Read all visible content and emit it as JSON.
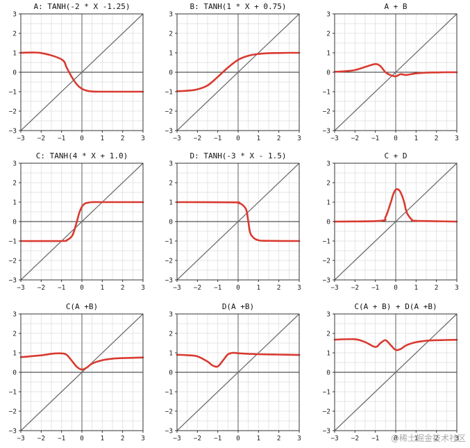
{
  "style": {
    "curve_color": "#d93a30",
    "identity_color": "#6e6e6e",
    "axis_color": "#2a2a2a",
    "grid_color": "#dedede"
  },
  "watermark": "@稀土掘金技术社区",
  "chart_data": [
    {
      "type": "line",
      "title": "A: TANH(-2 * X -1.25)",
      "xlim": [
        -3,
        3
      ],
      "ylim": [
        -3,
        3
      ],
      "xticks": [
        -3,
        -2,
        -1,
        0,
        1,
        2,
        3
      ],
      "yticks": [
        3,
        2,
        1,
        0,
        -1,
        -2,
        -3
      ],
      "grid": true,
      "series": [
        {
          "x": [
            -3,
            -2,
            -1,
            -0.75,
            -0.5,
            -0.25,
            0,
            0.25,
            0.5,
            1,
            2,
            3
          ],
          "values": [
            1.0,
            0.99,
            0.66,
            0.24,
            -0.24,
            -0.63,
            -0.85,
            -0.95,
            -0.99,
            -1.0,
            -1.0,
            -1.0
          ]
        }
      ]
    },
    {
      "type": "line",
      "title": "B: TANH(1 * X + 0.75)",
      "xlim": [
        -3,
        3
      ],
      "ylim": [
        -3,
        3
      ],
      "xticks": [
        -3,
        -2,
        -1,
        0,
        1,
        2,
        3
      ],
      "yticks": [
        3,
        2,
        1,
        0,
        -1,
        -2,
        -3
      ],
      "grid": true,
      "series": [
        {
          "x": [
            -3,
            -2.5,
            -2,
            -1.5,
            -1,
            -0.5,
            0,
            0.5,
            1,
            1.5,
            2,
            2.5,
            3
          ],
          "values": [
            -0.98,
            -0.95,
            -0.88,
            -0.68,
            -0.24,
            0.24,
            0.64,
            0.85,
            0.94,
            0.98,
            0.99,
            1.0,
            1.0
          ]
        }
      ]
    },
    {
      "type": "line",
      "title": "A + B",
      "xlim": [
        -3,
        3
      ],
      "ylim": [
        -3,
        3
      ],
      "xticks": [
        -3,
        -2,
        -1,
        0,
        1,
        2,
        3
      ],
      "yticks": [
        3,
        2,
        1,
        0,
        -1,
        -2,
        -3
      ],
      "grid": true,
      "series": [
        {
          "x": [
            -3,
            -2.5,
            -2,
            -1.5,
            -1,
            -0.75,
            -0.5,
            -0.25,
            0,
            0.25,
            0.5,
            1,
            1.5,
            2,
            2.5,
            3
          ],
          "values": [
            0.02,
            0.05,
            0.11,
            0.27,
            0.42,
            0.31,
            0.0,
            -0.15,
            -0.21,
            -0.1,
            -0.14,
            -0.06,
            -0.02,
            -0.01,
            0.0,
            0.0
          ]
        }
      ]
    },
    {
      "type": "line",
      "title": "C: TANH(4 * X + 1.0)",
      "xlim": [
        -3,
        3
      ],
      "ylim": [
        -3,
        3
      ],
      "xticks": [
        -3,
        -2,
        -1,
        0,
        1,
        2,
        3
      ],
      "yticks": [
        3,
        2,
        1,
        0,
        -1,
        -2,
        -3
      ],
      "grid": true,
      "series": [
        {
          "x": [
            -3,
            -1,
            -0.75,
            -0.5,
            -0.375,
            -0.25,
            -0.125,
            0,
            0.125,
            0.25,
            0.5,
            1,
            3
          ],
          "values": [
            -1.0,
            -1.0,
            -0.96,
            -0.76,
            -0.46,
            0.0,
            0.46,
            0.76,
            0.91,
            0.96,
            1.0,
            1.0,
            1.0
          ]
        }
      ]
    },
    {
      "type": "line",
      "title": "D: TANH(-3 * X - 1.5)",
      "xlim": [
        -3,
        3
      ],
      "ylim": [
        -3,
        3
      ],
      "xticks": [
        -3,
        -2,
        -1,
        0,
        1,
        2,
        3
      ],
      "yticks": [
        3,
        2,
        1,
        0,
        -1,
        -2,
        -3
      ],
      "grid": true,
      "series": [
        {
          "x": [
            -3,
            -0.2,
            0,
            0.2,
            0.4,
            0.5,
            0.6,
            0.8,
            1,
            1.3,
            3
          ],
          "values": [
            1.0,
            0.99,
            0.96,
            0.87,
            0.6,
            0.0,
            -0.6,
            -0.87,
            -0.96,
            -0.99,
            -1.0
          ]
        }
      ]
    },
    {
      "type": "line",
      "title": "C + D",
      "xlim": [
        -3,
        3
      ],
      "ylim": [
        -3,
        3
      ],
      "xticks": [
        -3,
        -2,
        -1,
        0,
        1,
        2,
        3
      ],
      "yticks": [
        3,
        2,
        1,
        0,
        -1,
        -2,
        -3
      ],
      "grid": true,
      "series": [
        {
          "x": [
            -3,
            -0.75,
            -0.5,
            -0.25,
            -0.125,
            0,
            0.125,
            0.25,
            0.4,
            0.5,
            0.6,
            0.8,
            1,
            3
          ],
          "values": [
            0.0,
            0.04,
            0.23,
            0.96,
            1.39,
            1.64,
            1.65,
            1.48,
            1.05,
            0.6,
            0.35,
            0.09,
            0.04,
            0.0
          ]
        }
      ]
    },
    {
      "type": "line",
      "title": "C(A +B)",
      "xlim": [
        -3,
        3
      ],
      "ylim": [
        -3,
        3
      ],
      "xticks": [
        -3,
        -2,
        -1,
        0,
        1,
        2,
        3
      ],
      "yticks": [
        3,
        2,
        1,
        0,
        -1,
        -2,
        -3
      ],
      "grid": true,
      "series": [
        {
          "x": [
            -3,
            -2,
            -1.5,
            -1,
            -0.75,
            -0.5,
            -0.25,
            0,
            0.25,
            0.5,
            1,
            1.5,
            2,
            3
          ],
          "values": [
            0.78,
            0.87,
            0.95,
            0.97,
            0.9,
            0.6,
            0.28,
            0.14,
            0.25,
            0.45,
            0.62,
            0.7,
            0.73,
            0.76
          ]
        }
      ]
    },
    {
      "type": "line",
      "title": "D(A +B)",
      "xlim": [
        -3,
        3
      ],
      "ylim": [
        -3,
        3
      ],
      "xticks": [
        -3,
        -2,
        -1,
        0,
        1,
        2,
        3
      ],
      "yticks": [
        3,
        2,
        1,
        0,
        -1,
        -2,
        -3
      ],
      "grid": true,
      "series": [
        {
          "x": [
            -3,
            -2.5,
            -2,
            -1.5,
            -1.25,
            -1,
            -0.75,
            -0.5,
            -0.25,
            0,
            0.5,
            1,
            2,
            3
          ],
          "values": [
            0.9,
            0.88,
            0.82,
            0.55,
            0.35,
            0.3,
            0.6,
            0.92,
            1.0,
            0.98,
            0.95,
            0.93,
            0.91,
            0.89
          ]
        }
      ]
    },
    {
      "type": "line",
      "title": "C(A + B) + D(A +B)",
      "xlim": [
        -3,
        3
      ],
      "ylim": [
        -3,
        3
      ],
      "xticks": [
        -3,
        -2,
        -1,
        0,
        1,
        2,
        3
      ],
      "yticks": [
        3,
        2,
        1,
        0,
        -1,
        -2,
        -3
      ],
      "grid": true,
      "series": [
        {
          "x": [
            -3,
            -2,
            -1.5,
            -1,
            -0.75,
            -0.5,
            -0.25,
            0,
            0.25,
            0.5,
            1,
            1.5,
            2,
            3
          ],
          "values": [
            1.68,
            1.7,
            1.55,
            1.3,
            1.5,
            1.65,
            1.4,
            1.15,
            1.2,
            1.38,
            1.55,
            1.62,
            1.65,
            1.67
          ]
        }
      ]
    }
  ]
}
